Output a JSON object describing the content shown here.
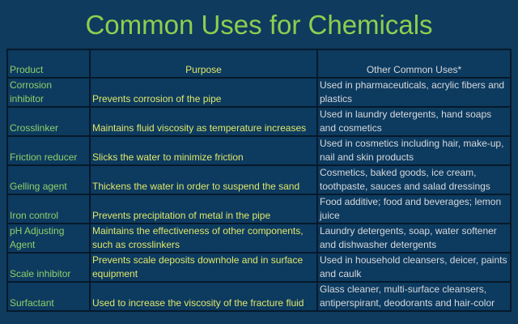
{
  "title": "Common Uses for Chemicals",
  "table": {
    "headers": [
      "Product",
      "Purpose",
      "Other Common Uses*"
    ],
    "rows": [
      [
        "Corrosion inhibitor",
        "Prevents corrosion of the pipe",
        "Used in pharmaceuticals, acrylic fibers and plastics"
      ],
      [
        "Crosslinker",
        "Maintains fluid viscosity as temperature increases",
        "Used in laundry detergents, hand soaps and cosmetics"
      ],
      [
        "Friction reducer",
        "Slicks the water to minimize friction",
        "Used in cosmetics including hair, make-up, nail and skin products"
      ],
      [
        "Gelling agent",
        "Thickens the water in order to suspend the sand",
        "Cosmetics, baked goods, ice cream, toothpaste, sauces and salad dressings"
      ],
      [
        "Iron control",
        "Prevents precipitation of metal in the pipe",
        "Food additive; food and beverages; lemon juice"
      ],
      [
        "pH Adjusting Agent",
        "Maintains the effectiveness of other components, such as crosslinkers",
        "Laundry detergents, soap, water softener and dishwasher detergents"
      ],
      [
        "Scale inhibitor",
        "Prevents scale deposits downhole and in surface equipment",
        "Used in household cleansers, deicer, paints and caulk"
      ],
      [
        "Surfactant",
        "Used to increase the viscosity of the fracture fluid",
        "Glass cleaner, multi-surface cleansers, antiperspirant, deodorants and hair-color"
      ]
    ]
  }
}
